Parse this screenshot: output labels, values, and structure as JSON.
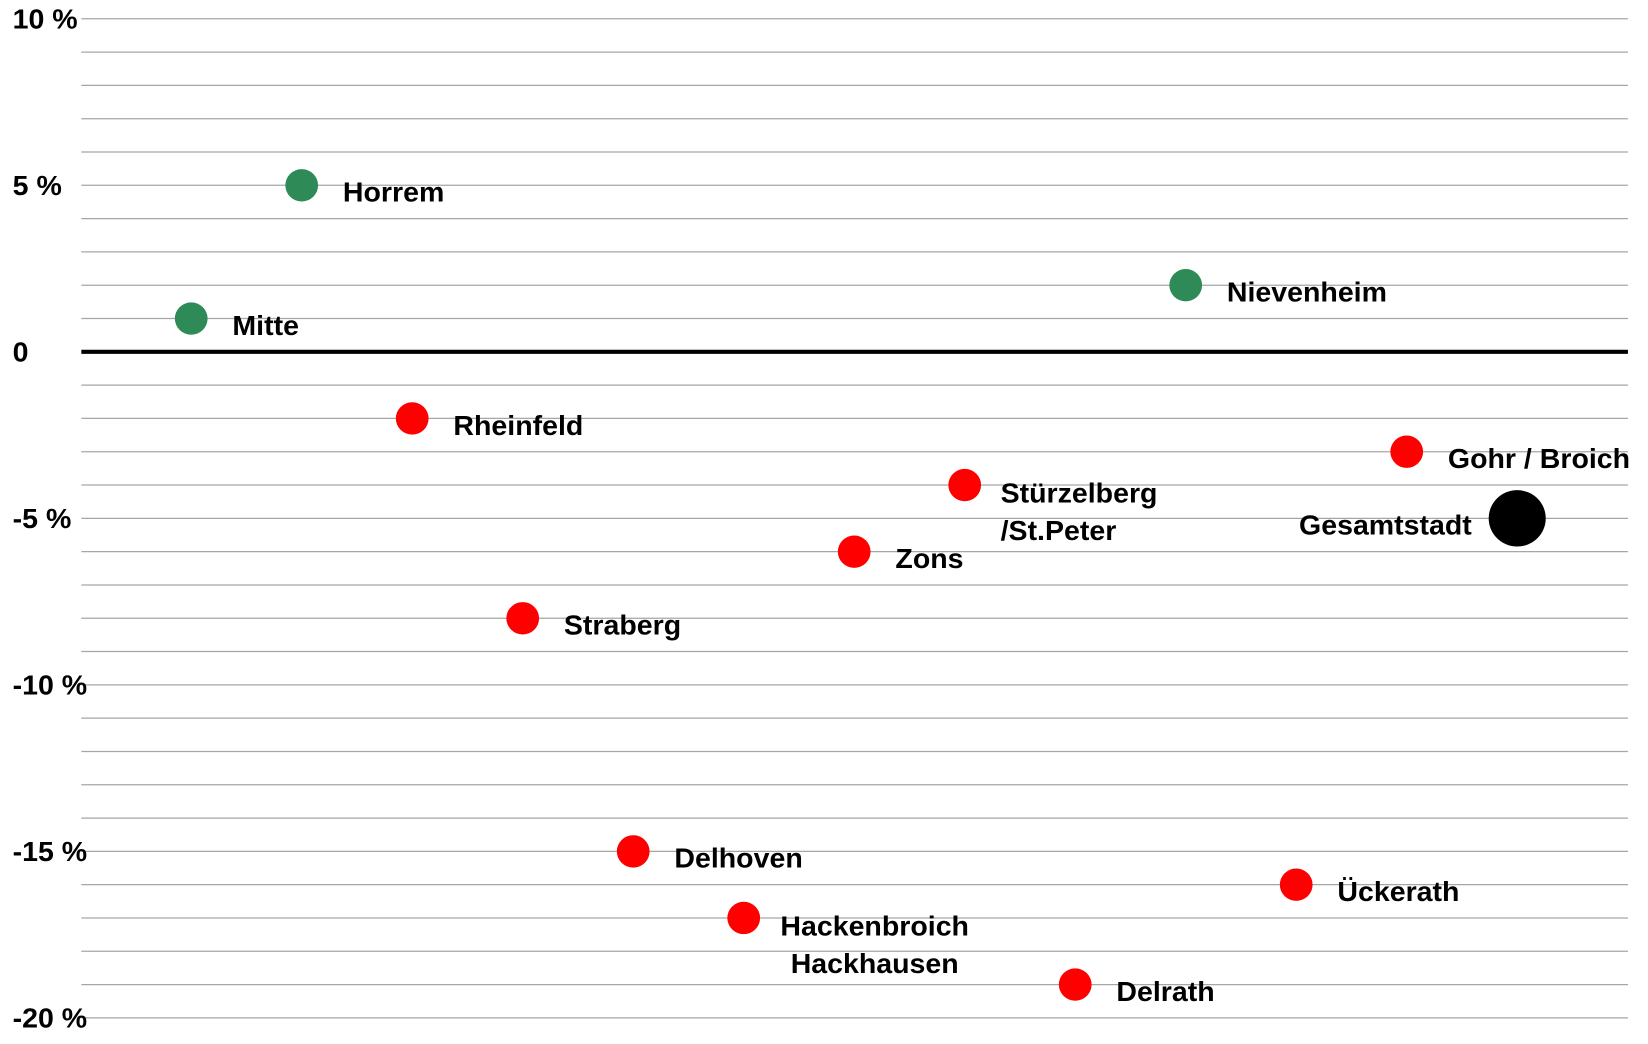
{
  "chart_data": {
    "type": "dot",
    "categories": [
      [
        "Mitte"
      ],
      [
        "Horrem"
      ],
      [
        "Rheinfeld"
      ],
      [
        "Straberg"
      ],
      [
        "Delhoven"
      ],
      [
        "Hackenbroich",
        "Hackhausen"
      ],
      [
        "Zons"
      ],
      [
        "Stürzelberg",
        "/St.Peter"
      ],
      [
        "Delrath"
      ],
      [
        "Nievenheim"
      ],
      [
        "Ückerath"
      ],
      [
        "Gohr / Broich"
      ],
      [
        "Gesamtstadt"
      ]
    ],
    "values": [
      1,
      5,
      -2,
      -8,
      -15,
      -17,
      -6,
      -4,
      -19,
      2,
      -16,
      -3,
      -5
    ],
    "colors": [
      "#2e8b57",
      "#2e8b57",
      "#ff0000",
      "#ff0000",
      "#ff0000",
      "#ff0000",
      "#ff0000",
      "#ff0000",
      "#ff0000",
      "#2e8b57",
      "#ff0000",
      "#ff0000",
      "#000000"
    ],
    "ylim": [
      -20,
      10
    ],
    "yticks": [
      {
        "value": 10,
        "label": "10 %"
      },
      {
        "value": 5,
        "label": "5 %"
      },
      0,
      {
        "value": -5,
        "label": "-5 %"
      },
      {
        "value": -10,
        "label": "-10 %"
      },
      {
        "value": -15,
        "label": "-15 %"
      },
      {
        "value": -20,
        "label": "-20 %"
      }
    ],
    "minor_yticks": [
      9,
      8,
      7,
      6,
      4,
      3,
      2,
      1,
      -1,
      -2,
      -3,
      -4,
      -6,
      -7,
      -8,
      -9,
      -11,
      -12,
      -13,
      -14,
      -16,
      -17,
      -18,
      -19
    ],
    "grid": true
  }
}
